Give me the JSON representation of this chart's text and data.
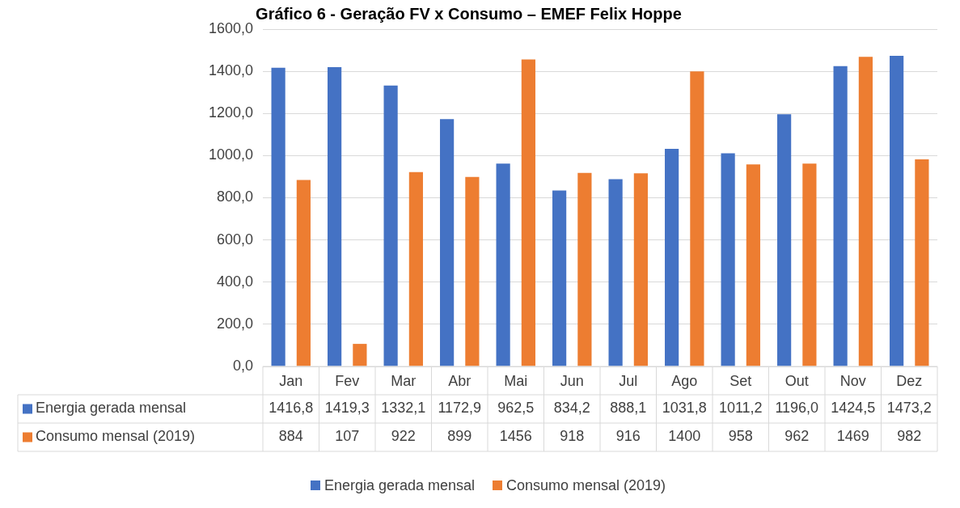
{
  "chart_data": {
    "type": "bar",
    "title": "Gráfico 6 - Geração FV x Consumo – EMEF Felix Hoppe",
    "categories": [
      "Jan",
      "Fev",
      "Mar",
      "Abr",
      "Mai",
      "Jun",
      "Jul",
      "Ago",
      "Set",
      "Out",
      "Nov",
      "Dez"
    ],
    "series": [
      {
        "name": "Energia gerada mensal",
        "color": "#4472c4",
        "values": [
          1416.8,
          1419.3,
          1332.1,
          1172.9,
          962.5,
          834.2,
          888.1,
          1031.8,
          1011.2,
          1196.0,
          1424.5,
          1473.2
        ],
        "value_labels": [
          "1416,8",
          "1419,3",
          "1332,1",
          "1172,9",
          "962,5",
          "834,2",
          "888,1",
          "1031,8",
          "1011,2",
          "1196,0",
          "1424,5",
          "1473,2"
        ]
      },
      {
        "name": "Consumo mensal (2019)",
        "color": "#ed7d31",
        "values": [
          884,
          107,
          922,
          899,
          1456,
          918,
          916,
          1400,
          958,
          962,
          1469,
          982
        ],
        "value_labels": [
          "884",
          "107",
          "922",
          "899",
          "1456",
          "918",
          "916",
          "1400",
          "958",
          "962",
          "1469",
          "982"
        ]
      }
    ],
    "ylim": [
      0,
      1600
    ],
    "yticks": [
      {
        "value": 0,
        "label": "0,0"
      },
      {
        "value": 200,
        "label": "200,0"
      },
      {
        "value": 400,
        "label": "400,0"
      },
      {
        "value": 600,
        "label": "600,0"
      },
      {
        "value": 800,
        "label": "800,0"
      },
      {
        "value": 1000,
        "label": "1000,0"
      },
      {
        "value": 1200,
        "label": "1200,0"
      },
      {
        "value": 1400,
        "label": "1400,0"
      },
      {
        "value": 1600,
        "label": "1600,0"
      }
    ],
    "grid": "y",
    "legend": "bottom"
  }
}
